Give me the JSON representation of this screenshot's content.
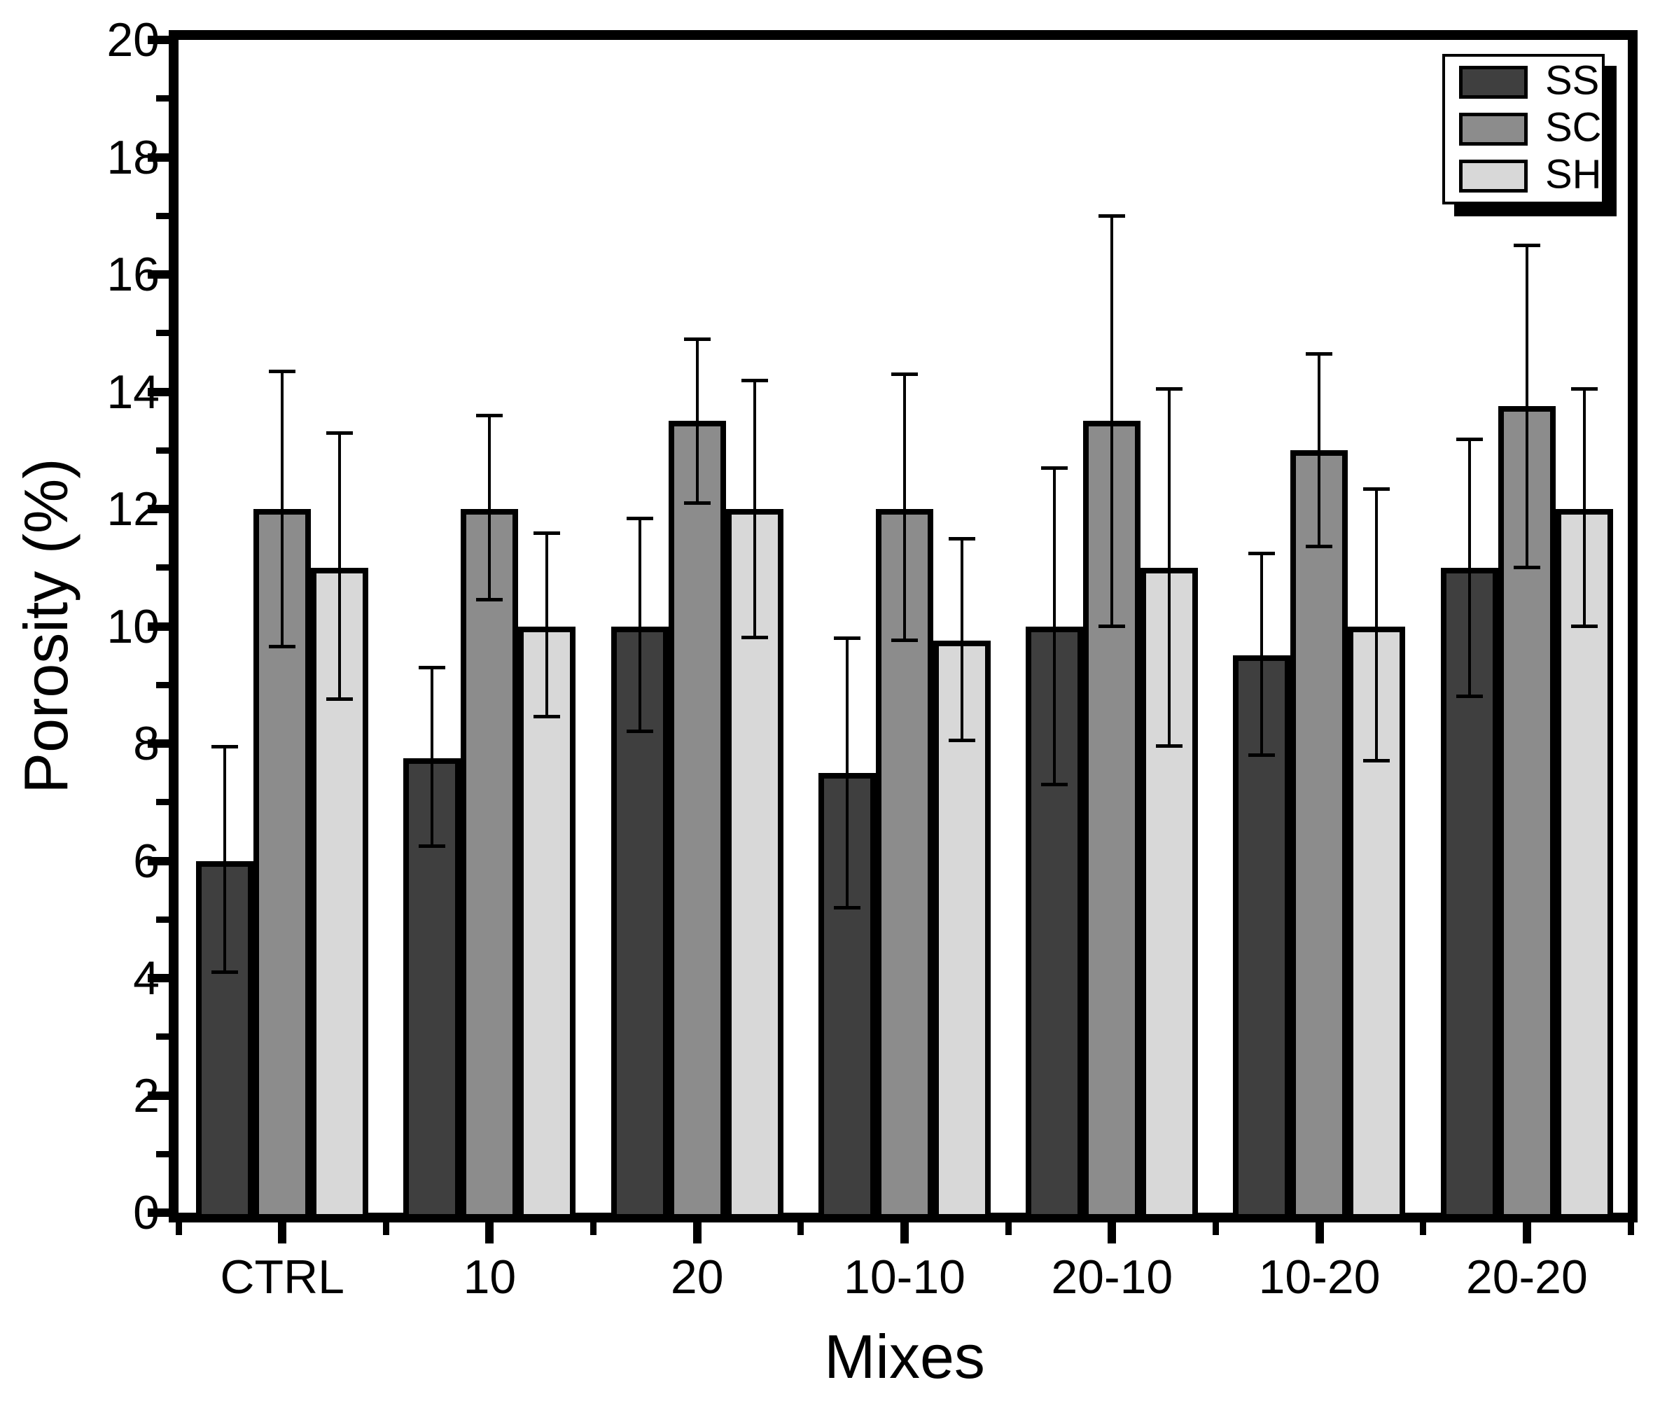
{
  "chart_data": {
    "type": "bar",
    "title": "",
    "xlabel": "Mixes",
    "ylabel": "Porosity (%)",
    "ylim": [
      0,
      20
    ],
    "y_major_step": 2,
    "y_minor_step": 1,
    "grid": false,
    "legend_position": "top-right",
    "categories": [
      "CTRL",
      "10",
      "20",
      "10-10",
      "20-10",
      "10-20",
      "20-20"
    ],
    "series": [
      {
        "name": "SS",
        "color": "#3f3f3f",
        "values": [
          6.0,
          7.75,
          10.0,
          7.5,
          10.0,
          9.5,
          11.0
        ],
        "err_low": [
          4.1,
          6.25,
          8.2,
          5.2,
          7.3,
          7.8,
          8.8
        ],
        "err_high": [
          7.95,
          9.3,
          11.85,
          9.8,
          12.7,
          11.25,
          13.2
        ]
      },
      {
        "name": "SC",
        "color": "#8c8c8c",
        "values": [
          12.0,
          12.0,
          13.5,
          12.0,
          13.5,
          13.0,
          13.75
        ],
        "err_low": [
          9.65,
          10.45,
          12.1,
          9.75,
          10.0,
          11.35,
          11.0
        ],
        "err_high": [
          14.35,
          13.6,
          14.9,
          14.3,
          17.0,
          14.65,
          16.5
        ]
      },
      {
        "name": "SH",
        "color": "#d8d8d8",
        "values": [
          11.0,
          10.0,
          12.0,
          9.75,
          11.0,
          10.0,
          12.0
        ],
        "err_low": [
          8.75,
          8.45,
          9.8,
          8.05,
          7.95,
          7.7,
          10.0
        ],
        "err_high": [
          13.3,
          11.6,
          14.2,
          11.5,
          14.05,
          12.35,
          14.05
        ]
      }
    ],
    "y_tick_labels": [
      "0",
      "2",
      "4",
      "6",
      "8",
      "10",
      "12",
      "14",
      "16",
      "18",
      "20"
    ],
    "axis_color": "#000000",
    "error_bar_color": "#000000"
  }
}
